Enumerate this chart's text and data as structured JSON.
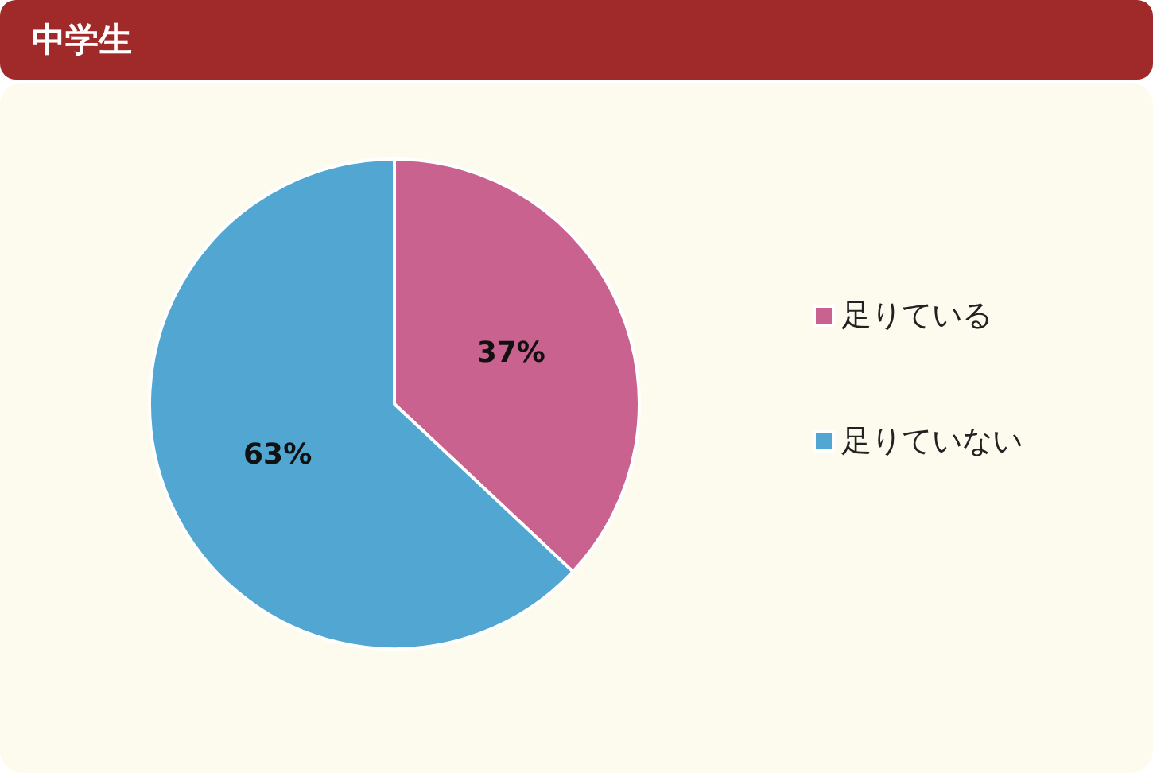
{
  "chart_data": {
    "type": "pie",
    "title": "中学生",
    "categories": [
      "足りている",
      "足りていない"
    ],
    "values": [
      37,
      63
    ],
    "colors": [
      "#c9628f",
      "#52a7d2"
    ],
    "value_labels": [
      "37%",
      "63%"
    ],
    "legend": "right"
  }
}
